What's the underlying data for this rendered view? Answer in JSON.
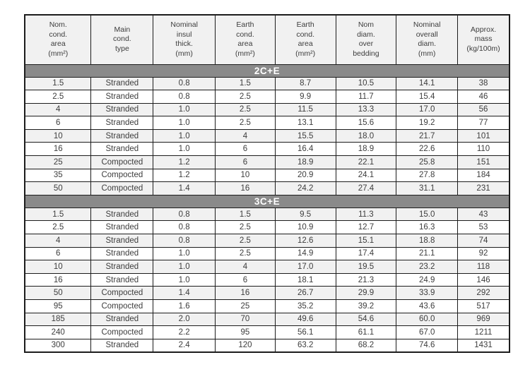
{
  "table": {
    "name": "Cable specification table",
    "columns": [
      {
        "id": "nom-cond-area",
        "label": "Nom.\ncond.\narea\n(mm²)"
      },
      {
        "id": "main-cond-type",
        "label": "Main\ncond.\ntype"
      },
      {
        "id": "nominal-insul-thick",
        "label": "Nominal\ninsul\nthick.\n(mm)"
      },
      {
        "id": "earth-cond-area-1",
        "label": "Earth\ncond.\narea\n(mm²)"
      },
      {
        "id": "earth-cond-area-2",
        "label": "Earth\ncond.\narea\n(mm²)"
      },
      {
        "id": "nom-diam-over-bedding",
        "label": "Nom\ndiam.\nover\nbedding"
      },
      {
        "id": "nominal-overall-diam",
        "label": "Nominal\noverall\ndiam.\n(mm)"
      },
      {
        "id": "approx-mass",
        "label": "Approx.\nmass\n(kg/100m)"
      }
    ],
    "sections": [
      {
        "label": "2C+E",
        "rows": [
          {
            "shaded": true,
            "values": [
              "1.5",
              "Stranded",
              "0.8",
              "1.5",
              "8.7",
              "10.5",
              "14.1",
              "38"
            ]
          },
          {
            "shaded": false,
            "values": [
              "2.5",
              "Stranded",
              "0.8",
              "2.5",
              "9.9",
              "11.7",
              "15.4",
              "46"
            ]
          },
          {
            "shaded": true,
            "values": [
              "4",
              "Stranded",
              "1.0",
              "2.5",
              "11.5",
              "13.3",
              "17.0",
              "56"
            ]
          },
          {
            "shaded": false,
            "values": [
              "6",
              "Stranded",
              "1.0",
              "2.5",
              "13.1",
              "15.6",
              "19.2",
              "77"
            ]
          },
          {
            "shaded": true,
            "values": [
              "10",
              "Stranded",
              "1.0",
              "4",
              "15.5",
              "18.0",
              "21.7",
              "101"
            ]
          },
          {
            "shaded": false,
            "values": [
              "16",
              "Stranded",
              "1.0",
              "6",
              "16.4",
              "18.9",
              "22.6",
              "110"
            ]
          },
          {
            "shaded": true,
            "values": [
              "25",
              "Compocted",
              "1.2",
              "6",
              "18.9",
              "22.1",
              "25.8",
              "151"
            ]
          },
          {
            "shaded": false,
            "values": [
              "35",
              "Compocted",
              "1.2",
              "10",
              "20.9",
              "24.1",
              "27.8",
              "184"
            ]
          },
          {
            "shaded": true,
            "values": [
              "50",
              "Compocted",
              "1.4",
              "16",
              "24.2",
              "27.4",
              "31.1",
              "231"
            ]
          }
        ]
      },
      {
        "label": "3C+E",
        "rows": [
          {
            "shaded": true,
            "values": [
              "1.5",
              "Stranded",
              "0.8",
              "1.5",
              "9.5",
              "11.3",
              "15.0",
              "43"
            ]
          },
          {
            "shaded": false,
            "values": [
              "2.5",
              "Stranded",
              "0.8",
              "2.5",
              "10.9",
              "12.7",
              "16.3",
              "53"
            ]
          },
          {
            "shaded": true,
            "values": [
              "4",
              "Stranded",
              "0.8",
              "2.5",
              "12.6",
              "15.1",
              "18.8",
              "74"
            ]
          },
          {
            "shaded": false,
            "values": [
              "6",
              "Stranded",
              "1.0",
              "2.5",
              "14.9",
              "17.4",
              "21.1",
              "92"
            ]
          },
          {
            "shaded": true,
            "values": [
              "10",
              "Stranded",
              "1.0",
              "4",
              "17.0",
              "19.5",
              "23.2",
              "118"
            ]
          },
          {
            "shaded": false,
            "values": [
              "16",
              "Stranded",
              "1.0",
              "6",
              "18.1",
              "21.3",
              "24.9",
              "146"
            ]
          },
          {
            "shaded": true,
            "values": [
              "50",
              "Compocted",
              "1.4",
              "16",
              "26.7",
              "29.9",
              "33.9",
              "292"
            ]
          },
          {
            "shaded": false,
            "values": [
              "95",
              "Compocted",
              "1.6",
              "25",
              "35.2",
              "39.2",
              "43.6",
              "517"
            ]
          },
          {
            "shaded": true,
            "values": [
              "185",
              "Stranded",
              "2.0",
              "70",
              "49.6",
              "54.6",
              "60.0",
              "969"
            ]
          },
          {
            "shaded": false,
            "values": [
              "240",
              "Compocted",
              "2.2",
              "95",
              "56.1",
              "61.1",
              "67.0",
              "1211"
            ]
          },
          {
            "shaded": false,
            "values": [
              "300",
              "Stranded",
              "2.4",
              "120",
              "63.2",
              "68.2",
              "74.6",
              "1431"
            ]
          }
        ]
      }
    ],
    "colors": {
      "band_background": "#8a8a8a",
      "band_text": "#ffffff",
      "shaded_row_background": "#f1f1f1",
      "border": "#1c1c1c",
      "text": "#3d3d3d"
    }
  }
}
